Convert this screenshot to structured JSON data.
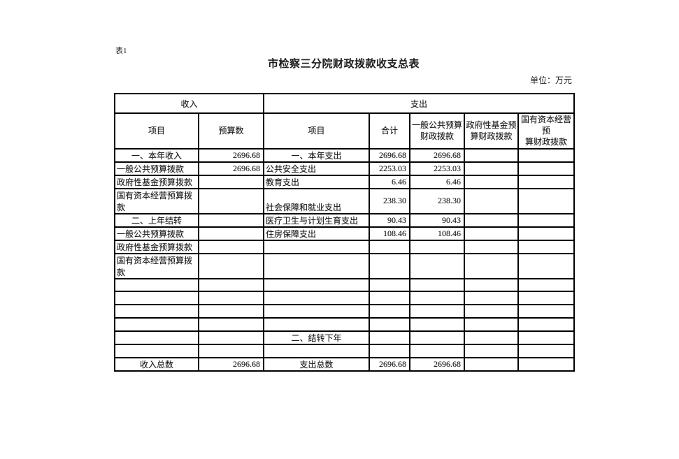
{
  "page": {
    "sheet_label": "表1",
    "title": "市检察三分院财政拨款收支总表",
    "unit_note": "单位：万元"
  },
  "colors": {
    "text": "#1c1c1c",
    "border": "#000000",
    "background": "#ffffff"
  },
  "table": {
    "sections": {
      "income": "收入",
      "expenditure": "支出"
    },
    "columns": {
      "income_item": "项目",
      "income_budget": "预算数",
      "exp_item": "项目",
      "exp_total": "合计",
      "exp_general_budget": "一般公共预算\n财政拨款",
      "exp_gov_fund": "政府性基金预\n算财政拨款",
      "exp_state_capital": "国有资本经营预\n算财政拨款"
    },
    "rows": [
      {
        "income_item": "一、本年收入",
        "income_align": "center",
        "income_budget": "2696.68",
        "exp_item": "一、本年支出",
        "exp_align": "center",
        "exp_total": "2696.68",
        "exp_general": "2696.68",
        "exp_gov_fund": "",
        "exp_state_capital": ""
      },
      {
        "income_item": "一般公共预算拨款",
        "income_align": "left",
        "income_budget": "2696.68",
        "exp_item": "公共安全支出",
        "exp_align": "left",
        "exp_total": "2253.03",
        "exp_general": "2253.03",
        "exp_gov_fund": "",
        "exp_state_capital": ""
      },
      {
        "income_item": "政府性基金预算拨款",
        "income_align": "left",
        "income_budget": "",
        "exp_item": "教育支出",
        "exp_align": "left",
        "exp_total": "6.46",
        "exp_general": "6.46",
        "exp_gov_fund": "",
        "exp_state_capital": ""
      },
      {
        "income_item": "国有资本经营预算拨款",
        "income_align": "left",
        "income_budget": "",
        "exp_item": "社会保障和就业支出",
        "exp_align": "left",
        "exp_total": "238.30",
        "exp_general": "238.30",
        "exp_gov_fund": "",
        "exp_state_capital": ""
      },
      {
        "income_item": "二、上年结转",
        "income_align": "center",
        "income_budget": "",
        "exp_item": "医疗卫生与计划生育支出",
        "exp_align": "left",
        "exp_total": "90.43",
        "exp_general": "90.43",
        "exp_gov_fund": "",
        "exp_state_capital": ""
      },
      {
        "income_item": "一般公共预算拨款",
        "income_align": "left",
        "income_budget": "",
        "exp_item": "住房保障支出",
        "exp_align": "left",
        "exp_total": "108.46",
        "exp_general": "108.46",
        "exp_gov_fund": "",
        "exp_state_capital": ""
      },
      {
        "income_item": "政府性基金预算拨款",
        "income_align": "left",
        "income_budget": "",
        "exp_item": "",
        "exp_align": "left",
        "exp_total": "",
        "exp_general": "",
        "exp_gov_fund": "",
        "exp_state_capital": ""
      },
      {
        "income_item": "国有资本经营预算拨款",
        "income_align": "left",
        "income_budget": "",
        "exp_item": "",
        "exp_align": "left",
        "exp_total": "",
        "exp_general": "",
        "exp_gov_fund": "",
        "exp_state_capital": ""
      },
      {
        "income_item": "",
        "income_align": "left",
        "income_budget": "",
        "exp_item": "",
        "exp_align": "left",
        "exp_total": "",
        "exp_general": "",
        "exp_gov_fund": "",
        "exp_state_capital": ""
      },
      {
        "income_item": "",
        "income_align": "left",
        "income_budget": "",
        "exp_item": "",
        "exp_align": "left",
        "exp_total": "",
        "exp_general": "",
        "exp_gov_fund": "",
        "exp_state_capital": ""
      },
      {
        "income_item": "",
        "income_align": "left",
        "income_budget": "",
        "exp_item": "",
        "exp_align": "left",
        "exp_total": "",
        "exp_general": "",
        "exp_gov_fund": "",
        "exp_state_capital": ""
      },
      {
        "income_item": "",
        "income_align": "left",
        "income_budget": "",
        "exp_item": "",
        "exp_align": "left",
        "exp_total": "",
        "exp_general": "",
        "exp_gov_fund": "",
        "exp_state_capital": ""
      },
      {
        "income_item": "",
        "income_align": "left",
        "income_budget": "",
        "exp_item": "二、结转下年",
        "exp_align": "center",
        "exp_total": "",
        "exp_general": "",
        "exp_gov_fund": "",
        "exp_state_capital": ""
      },
      {
        "income_item": "",
        "income_align": "left",
        "income_budget": "",
        "exp_item": "",
        "exp_align": "left",
        "exp_total": "",
        "exp_general": "",
        "exp_gov_fund": "",
        "exp_state_capital": ""
      },
      {
        "income_item": "收入总数",
        "income_align": "center",
        "income_budget": "2696.68",
        "exp_item": "支出总数",
        "exp_align": "center",
        "exp_total": "2696.68",
        "exp_general": "2696.68",
        "exp_gov_fund": "",
        "exp_state_capital": ""
      }
    ]
  }
}
